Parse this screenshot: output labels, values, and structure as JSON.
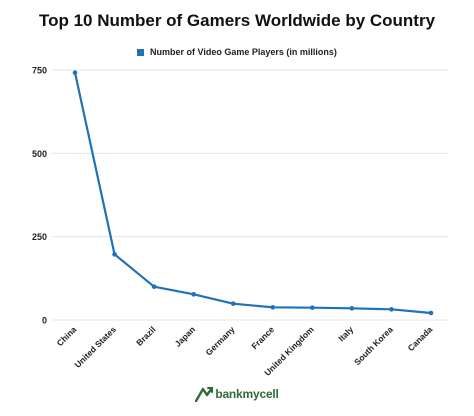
{
  "chart_data": {
    "type": "line",
    "title": "Top 10 Number of Gamers Worldwide by Country",
    "categories": [
      "China",
      "United States",
      "Brazil",
      "Japan",
      "Germany",
      "France",
      "United Kingdom",
      "Italy",
      "South Korea",
      "Canada"
    ],
    "series": [
      {
        "name": "Number of Video Game Players (in millions)",
        "values": [
          742,
          197,
          100,
          77,
          49,
          38,
          37,
          35,
          32,
          21
        ],
        "color": "#1f72b8"
      }
    ],
    "yticks": [
      0,
      250,
      500,
      750
    ],
    "ylim": [
      0,
      780
    ],
    "grid": true,
    "legend_position": "top-center"
  },
  "brand": {
    "name": "bankmycell"
  },
  "colors": {
    "grid": "#e6e6e6",
    "line": "#1f72b8",
    "brand": "#2e6b3a"
  }
}
